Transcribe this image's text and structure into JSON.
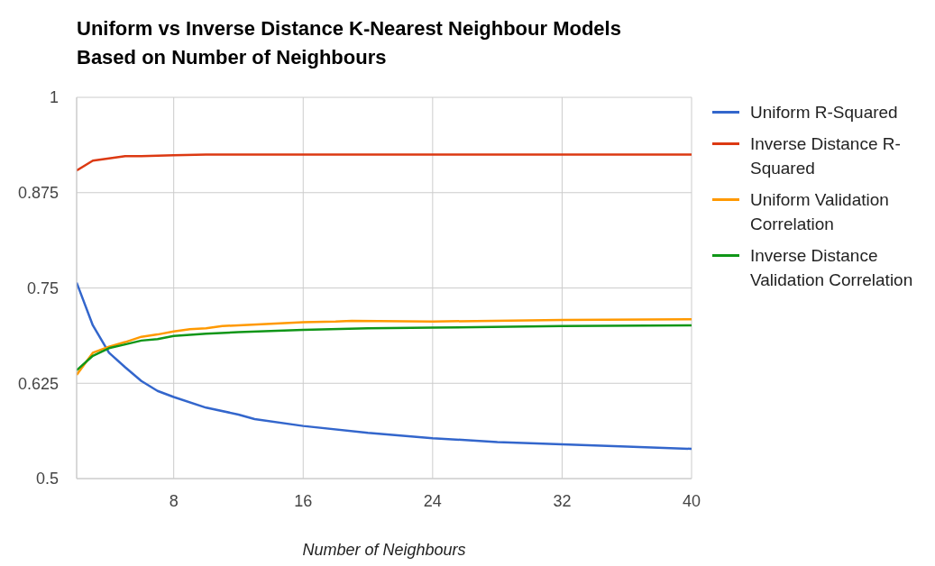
{
  "chart_data": {
    "type": "line",
    "title": "Uniform vs Inverse Distance K-Nearest Neighbour Models Based on Number of Neighbours",
    "xlabel": "Number of Neighbours",
    "xlim": [
      2,
      40
    ],
    "xticks": [
      8,
      16,
      24,
      32,
      40
    ],
    "ylim": [
      0.5,
      1
    ],
    "yticks": [
      0.5,
      0.625,
      0.75,
      0.875,
      1
    ],
    "grid": true,
    "legend": "right",
    "marker": "none",
    "line_style": "solid",
    "series": [
      {
        "name": "Uniform R-Squared",
        "color": "#3366cc",
        "x": [
          2,
          3,
          4,
          5,
          6,
          7,
          8,
          10,
          12,
          13,
          16,
          20,
          24,
          28,
          32,
          36,
          40
        ],
        "values": [
          0.757,
          0.701,
          0.665,
          0.646,
          0.628,
          0.615,
          0.607,
          0.593,
          0.584,
          0.578,
          0.569,
          0.56,
          0.553,
          0.548,
          0.545,
          0.542,
          0.539
        ]
      },
      {
        "name": "Inverse Distance R-Squared",
        "color": "#dc3912",
        "x": [
          2,
          3,
          4,
          5,
          6,
          8,
          10,
          12,
          16,
          24,
          32,
          40
        ],
        "values": [
          0.904,
          0.917,
          0.92,
          0.923,
          0.923,
          0.924,
          0.925,
          0.925,
          0.925,
          0.925,
          0.925,
          0.925
        ]
      },
      {
        "name": "Uniform Validation Correlation",
        "color": "#ff9900",
        "x": [
          2,
          3,
          4,
          5,
          6,
          7,
          8,
          9,
          10,
          11,
          12,
          14,
          16,
          18,
          19,
          24,
          32,
          40
        ],
        "values": [
          0.636,
          0.665,
          0.673,
          0.679,
          0.686,
          0.689,
          0.693,
          0.696,
          0.697,
          0.7,
          0.701,
          0.703,
          0.705,
          0.706,
          0.707,
          0.706,
          0.708,
          0.709
        ]
      },
      {
        "name": "Inverse Distance Validation Correlation",
        "color": "#109618",
        "x": [
          2,
          3,
          4,
          5,
          6,
          7,
          8,
          10,
          12,
          16,
          20,
          24,
          32,
          40
        ],
        "values": [
          0.642,
          0.661,
          0.671,
          0.676,
          0.681,
          0.683,
          0.687,
          0.69,
          0.692,
          0.695,
          0.697,
          0.698,
          0.7,
          0.701
        ]
      }
    ]
  }
}
